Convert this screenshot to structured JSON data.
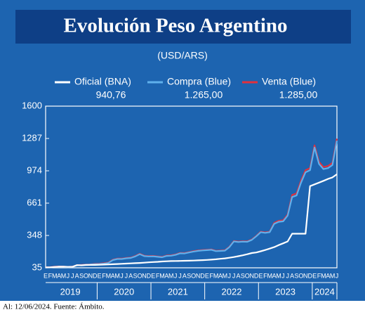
{
  "chart_data": {
    "type": "line",
    "title": "Evolución Peso Argentino",
    "subtitle": "(USD/ARS)",
    "footer": "Al: 12/06/2024. Fuente: Ámbito.",
    "categories": [
      "E",
      "F",
      "M",
      "A",
      "M",
      "J",
      "J",
      "A",
      "S",
      "O",
      "N",
      "D",
      "E",
      "F",
      "M",
      "A",
      "M",
      "J",
      "J",
      "A",
      "S",
      "O",
      "N",
      "D",
      "E",
      "F",
      "M",
      "A",
      "M",
      "J",
      "J",
      "A",
      "S",
      "O",
      "N",
      "D",
      "E",
      "F",
      "M",
      "A",
      "M",
      "J",
      "J",
      "A",
      "S",
      "O",
      "N",
      "D",
      "E",
      "F",
      "M",
      "A",
      "M",
      "J",
      "J",
      "A",
      "S",
      "O",
      "N",
      "D",
      "E",
      "F",
      "M",
      "A",
      "M",
      "J"
    ],
    "years": [
      "2019",
      "2020",
      "2021",
      "2022",
      "2023",
      "2024"
    ],
    "ylim": [
      35,
      1600
    ],
    "yticks": [
      35,
      348,
      661,
      974,
      1287,
      1600
    ],
    "series": [
      {
        "name": "Venta (Blue)",
        "legend_value": "1.285,00",
        "color": "#e2303c",
        "values": [
          39,
          41,
          46,
          47,
          46,
          44,
          46,
          60,
          63,
          67,
          68,
          73,
          75,
          79,
          86,
          114,
          124,
          124,
          131,
          134,
          149,
          171,
          152,
          149,
          150,
          145,
          141,
          154,
          156,
          164,
          179,
          178,
          187,
          196,
          203,
          207,
          210,
          213,
          200,
          202,
          205,
          239,
          294,
          289,
          292,
          291,
          309,
          344,
          385,
          378,
          385,
          470,
          490,
          495,
          550,
          740,
          755,
          880,
          980,
          1000,
          1220,
          1060,
          1010,
          1020,
          1050,
          1285
        ]
      },
      {
        "name": "Compra (Blue)",
        "legend_value": "1.265,00",
        "color": "#5fb0ec",
        "values": [
          37,
          39,
          44,
          45,
          44,
          42,
          44,
          58,
          61,
          65,
          66,
          70,
          72,
          75,
          82,
          110,
          120,
          120,
          127,
          130,
          145,
          167,
          148,
          145,
          146,
          141,
          137,
          150,
          152,
          160,
          175,
          174,
          183,
          192,
          199,
          203,
          206,
          209,
          196,
          198,
          201,
          235,
          290,
          285,
          288,
          287,
          305,
          340,
          380,
          373,
          380,
          460,
          480,
          485,
          540,
          720,
          735,
          860,
          960,
          980,
          1200,
          1040,
          990,
          1000,
          1030,
          1265
        ]
      },
      {
        "name": "Oficial (BNA)",
        "legend_value": "940,76",
        "color": "#ffffff",
        "values": [
          39,
          40,
          43,
          46,
          46,
          44,
          45,
          61,
          59,
          62,
          63,
          63,
          64,
          66,
          68,
          70,
          72,
          74,
          76,
          78,
          80,
          82,
          85,
          88,
          91,
          93,
          96,
          98,
          100,
          101,
          102,
          103,
          104,
          105,
          107,
          109,
          111,
          114,
          117,
          122,
          126,
          132,
          139,
          147,
          156,
          166,
          178,
          183,
          195,
          207,
          221,
          235,
          255,
          272,
          290,
          365,
          365,
          365,
          365,
          826,
          843,
          860,
          877,
          895,
          910,
          940.76
        ]
      }
    ]
  }
}
